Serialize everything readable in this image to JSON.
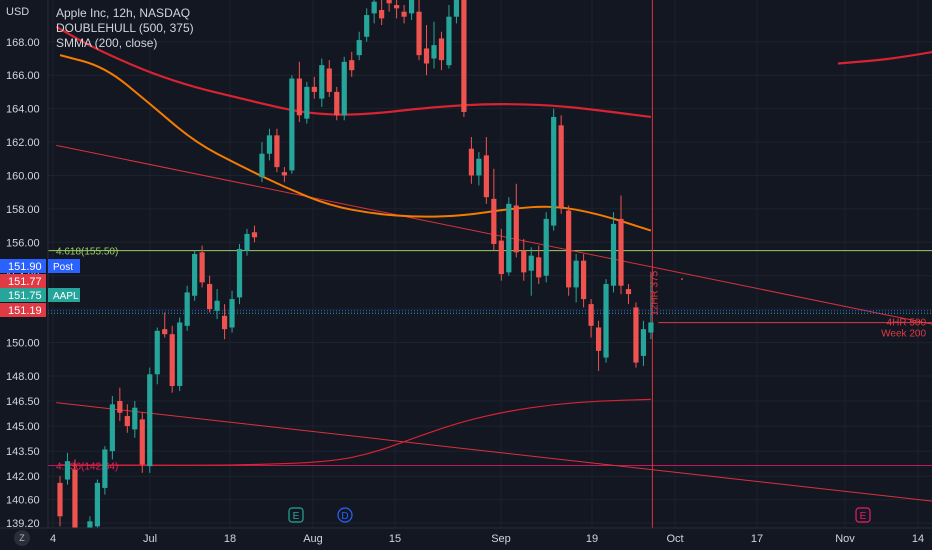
{
  "legend": {
    "symbol": "Apple Inc, 12h, NASDAQ",
    "ind1": "DOUBLEHULL (500, 375)",
    "ind2": "SMMA (200, close)"
  },
  "currency": "USD",
  "zoom_label": "Z",
  "colors": {
    "bg": "#131722",
    "up": "#26a69a",
    "down": "#ef5350",
    "hull": "#e0303a",
    "smma": "#f57c00",
    "fib": "#9ccc65"
  },
  "chart_data": {
    "type": "candlestick",
    "ylim": [
      138.9,
      170.5
    ],
    "y_ticks": [
      "139.20",
      "140.60",
      "142.00",
      "143.50",
      "145.00",
      "146.50",
      "148.00",
      "150.00",
      "152.00",
      "154.00",
      "156.00",
      "158.00",
      "160.00",
      "162.00",
      "164.00",
      "166.00",
      "168.00"
    ],
    "x_ticks": [
      "4",
      "Jul",
      "18",
      "Aug",
      "15",
      "Sep",
      "19",
      "Oct",
      "17",
      "Nov",
      "14"
    ],
    "price_labels": [
      {
        "text": "151.90",
        "tag": "Post",
        "value": 151.9,
        "color": "#2962ff"
      },
      {
        "text": "151.77",
        "tag": "",
        "value": 151.77,
        "color": "#e03a45"
      },
      {
        "text": "151.75",
        "tag": "AAPL",
        "value": 151.75,
        "color": "#26a69a"
      },
      {
        "text": "151.19",
        "tag": "",
        "value": 151.19,
        "color": "#e03a45"
      }
    ],
    "fib_levels": [
      {
        "label": "4.618(155.50)",
        "value": 155.5
      },
      {
        "label": "4.236(142.64)",
        "value": 142.64
      }
    ],
    "annotations": [
      "4HR 500",
      "Week 200",
      "12HR 375"
    ],
    "event_markers": [
      {
        "label": "E",
        "tick": "Aug"
      },
      {
        "label": "D",
        "tick": "Aug"
      },
      {
        "label": "E",
        "tick": "Nov"
      }
    ],
    "candles": [
      {
        "o": 141.6,
        "h": 142.0,
        "l": 139.0,
        "c": 139.6
      },
      {
        "o": 141.8,
        "h": 143.4,
        "l": 141.5,
        "c": 142.9
      },
      {
        "o": 142.4,
        "h": 143.0,
        "l": 138.5,
        "c": 138.9
      },
      {
        "o": 138.5,
        "h": 138.8,
        "l": 136.0,
        "c": 136.5
      },
      {
        "o": 137.0,
        "h": 139.6,
        "l": 136.7,
        "c": 139.3
      },
      {
        "o": 139.0,
        "h": 141.8,
        "l": 138.6,
        "c": 141.6
      },
      {
        "o": 141.3,
        "h": 143.8,
        "l": 140.9,
        "c": 143.6
      },
      {
        "o": 143.5,
        "h": 146.8,
        "l": 143.0,
        "c": 146.3
      },
      {
        "o": 146.5,
        "h": 147.3,
        "l": 145.3,
        "c": 145.8
      },
      {
        "o": 145.6,
        "h": 146.3,
        "l": 144.6,
        "c": 145.0
      },
      {
        "o": 144.8,
        "h": 146.5,
        "l": 144.3,
        "c": 146.1
      },
      {
        "o": 145.4,
        "h": 145.8,
        "l": 142.2,
        "c": 142.7
      },
      {
        "o": 142.6,
        "h": 148.5,
        "l": 142.2,
        "c": 148.1
      },
      {
        "o": 148.1,
        "h": 150.9,
        "l": 147.5,
        "c": 150.7
      },
      {
        "o": 150.8,
        "h": 151.8,
        "l": 150.3,
        "c": 150.5
      },
      {
        "o": 150.5,
        "h": 151.0,
        "l": 147.0,
        "c": 147.4
      },
      {
        "o": 147.4,
        "h": 151.5,
        "l": 147.1,
        "c": 151.2
      },
      {
        "o": 151.0,
        "h": 153.4,
        "l": 150.7,
        "c": 153.0
      },
      {
        "o": 152.8,
        "h": 155.5,
        "l": 152.5,
        "c": 155.3
      },
      {
        "o": 155.4,
        "h": 155.8,
        "l": 153.3,
        "c": 153.6
      },
      {
        "o": 153.5,
        "h": 154.0,
        "l": 151.8,
        "c": 152.0
      },
      {
        "o": 151.9,
        "h": 153.2,
        "l": 151.4,
        "c": 152.5
      },
      {
        "o": 151.6,
        "h": 152.3,
        "l": 150.2,
        "c": 150.8
      },
      {
        "o": 150.9,
        "h": 153.1,
        "l": 150.6,
        "c": 152.6
      },
      {
        "o": 152.7,
        "h": 155.9,
        "l": 152.3,
        "c": 155.6
      },
      {
        "o": 155.5,
        "h": 156.8,
        "l": 155.2,
        "c": 156.5
      },
      {
        "o": 156.6,
        "h": 157.0,
        "l": 156.0,
        "c": 156.3
      },
      {
        "o": 159.9,
        "h": 162.0,
        "l": 159.6,
        "c": 161.3
      },
      {
        "o": 161.3,
        "h": 162.8,
        "l": 160.9,
        "c": 162.4
      },
      {
        "o": 162.4,
        "h": 162.8,
        "l": 160.2,
        "c": 160.5
      },
      {
        "o": 160.2,
        "h": 160.5,
        "l": 159.6,
        "c": 160.0
      },
      {
        "o": 160.3,
        "h": 166.0,
        "l": 160.1,
        "c": 165.8
      },
      {
        "o": 165.8,
        "h": 166.8,
        "l": 163.2,
        "c": 163.6
      },
      {
        "o": 163.4,
        "h": 165.6,
        "l": 163.1,
        "c": 165.3
      },
      {
        "o": 165.3,
        "h": 165.9,
        "l": 164.6,
        "c": 165.0
      },
      {
        "o": 164.6,
        "h": 167.0,
        "l": 164.1,
        "c": 166.6
      },
      {
        "o": 166.4,
        "h": 166.9,
        "l": 164.7,
        "c": 165.0
      },
      {
        "o": 165.0,
        "h": 165.3,
        "l": 163.3,
        "c": 163.6
      },
      {
        "o": 163.6,
        "h": 167.1,
        "l": 163.3,
        "c": 166.8
      },
      {
        "o": 166.9,
        "h": 167.4,
        "l": 165.9,
        "c": 166.3
      },
      {
        "o": 167.2,
        "h": 168.6,
        "l": 166.9,
        "c": 168.1
      },
      {
        "o": 168.3,
        "h": 170.0,
        "l": 168.0,
        "c": 169.6
      },
      {
        "o": 169.7,
        "h": 170.6,
        "l": 169.1,
        "c": 170.4
      },
      {
        "o": 169.9,
        "h": 170.5,
        "l": 169.0,
        "c": 169.4
      },
      {
        "o": 170.6,
        "h": 171.0,
        "l": 169.8,
        "c": 170.3
      },
      {
        "o": 170.2,
        "h": 170.5,
        "l": 169.4,
        "c": 170.0
      },
      {
        "o": 169.8,
        "h": 170.2,
        "l": 169.1,
        "c": 169.5
      },
      {
        "o": 169.7,
        "h": 171.4,
        "l": 169.3,
        "c": 171.0
      },
      {
        "o": 169.8,
        "h": 170.6,
        "l": 166.9,
        "c": 167.2
      },
      {
        "o": 167.6,
        "h": 169.0,
        "l": 166.0,
        "c": 166.7
      },
      {
        "o": 167.0,
        "h": 169.2,
        "l": 166.4,
        "c": 167.8
      },
      {
        "o": 168.2,
        "h": 168.6,
        "l": 166.3,
        "c": 166.9
      },
      {
        "o": 166.6,
        "h": 170.2,
        "l": 166.4,
        "c": 169.5
      },
      {
        "o": 169.5,
        "h": 172.0,
        "l": 169.1,
        "c": 171.5
      },
      {
        "o": 171.5,
        "h": 172.0,
        "l": 163.5,
        "c": 163.8
      },
      {
        "o": 161.6,
        "h": 162.3,
        "l": 159.5,
        "c": 160.0
      },
      {
        "o": 160.0,
        "h": 161.4,
        "l": 159.4,
        "c": 161.0
      },
      {
        "o": 161.2,
        "h": 162.3,
        "l": 158.3,
        "c": 158.7
      },
      {
        "o": 158.6,
        "h": 160.4,
        "l": 155.5,
        "c": 155.9
      },
      {
        "o": 156.1,
        "h": 156.8,
        "l": 153.7,
        "c": 154.1
      },
      {
        "o": 154.2,
        "h": 158.7,
        "l": 154.0,
        "c": 158.3
      },
      {
        "o": 158.2,
        "h": 159.5,
        "l": 155.1,
        "c": 155.4
      },
      {
        "o": 155.5,
        "h": 156.2,
        "l": 153.7,
        "c": 154.2
      },
      {
        "o": 154.3,
        "h": 155.7,
        "l": 152.8,
        "c": 155.2
      },
      {
        "o": 155.1,
        "h": 155.8,
        "l": 153.5,
        "c": 153.9
      },
      {
        "o": 154.0,
        "h": 157.8,
        "l": 153.6,
        "c": 157.4
      },
      {
        "o": 157.0,
        "h": 164.0,
        "l": 156.7,
        "c": 163.5
      },
      {
        "o": 163.0,
        "h": 163.6,
        "l": 157.7,
        "c": 158.1
      },
      {
        "o": 157.9,
        "h": 158.2,
        "l": 152.8,
        "c": 153.3
      },
      {
        "o": 153.3,
        "h": 155.3,
        "l": 152.4,
        "c": 154.9
      },
      {
        "o": 154.9,
        "h": 155.3,
        "l": 152.1,
        "c": 152.6
      },
      {
        "o": 152.3,
        "h": 152.6,
        "l": 150.3,
        "c": 151.0
      },
      {
        "o": 150.9,
        "h": 151.3,
        "l": 148.3,
        "c": 149.5
      },
      {
        "o": 149.1,
        "h": 153.8,
        "l": 148.8,
        "c": 153.5
      },
      {
        "o": 153.4,
        "h": 157.8,
        "l": 153.0,
        "c": 157.1
      },
      {
        "o": 157.4,
        "h": 158.8,
        "l": 152.9,
        "c": 153.4
      },
      {
        "o": 153.2,
        "h": 153.5,
        "l": 152.3,
        "c": 152.9
      },
      {
        "o": 152.1,
        "h": 152.4,
        "l": 148.5,
        "c": 148.8
      },
      {
        "o": 149.2,
        "h": 151.3,
        "l": 148.6,
        "c": 150.8
      },
      {
        "o": 150.6,
        "h": 154.2,
        "l": 150.2,
        "c": 151.2
      }
    ],
    "overlays": [
      {
        "name": "hull_upper",
        "points": [
          [
            -0.5,
            168.9
          ],
          [
            5,
            167.5
          ],
          [
            15,
            165.6
          ],
          [
            27,
            164.3
          ],
          [
            33,
            163.7
          ],
          [
            40,
            163.6
          ],
          [
            50,
            164.1
          ],
          [
            58,
            164.3
          ],
          [
            66,
            164.2
          ],
          [
            72,
            163.9
          ],
          [
            79,
            163.5
          ]
        ]
      },
      {
        "name": "hull_upper_projection",
        "points": [
          [
            104,
            166.7
          ],
          [
            112,
            167.0
          ],
          [
            124,
            168.0
          ],
          [
            136,
            169.5
          ],
          [
            150,
            170.6
          ]
        ]
      },
      {
        "name": "smma",
        "points": [
          [
            0,
            167.2
          ],
          [
            6,
            166.5
          ],
          [
            12,
            164.3
          ],
          [
            18,
            162.0
          ],
          [
            24,
            160.6
          ],
          [
            30,
            159.3
          ],
          [
            36,
            158.2
          ],
          [
            42,
            157.7
          ],
          [
            48,
            157.5
          ],
          [
            54,
            157.6
          ],
          [
            60,
            158.0
          ],
          [
            66,
            158.2
          ],
          [
            72,
            157.7
          ],
          [
            79,
            156.7
          ]
        ]
      },
      {
        "name": "hull_lower",
        "points": [
          [
            0,
            142.68
          ],
          [
            12,
            142.65
          ],
          [
            24,
            142.66
          ],
          [
            36,
            142.85
          ],
          [
            42,
            143.4
          ],
          [
            48,
            144.4
          ],
          [
            54,
            145.3
          ],
          [
            60,
            145.9
          ],
          [
            66,
            146.3
          ],
          [
            72,
            146.5
          ],
          [
            79,
            146.6
          ]
        ]
      }
    ],
    "trendlines": [
      {
        "a": [
          -0.5,
          161.8
        ],
        "b": [
          150.5,
          148.0
        ]
      },
      {
        "a": [
          -0.5,
          146.4
        ],
        "b": [
          150.5,
          138.8
        ]
      }
    ]
  }
}
